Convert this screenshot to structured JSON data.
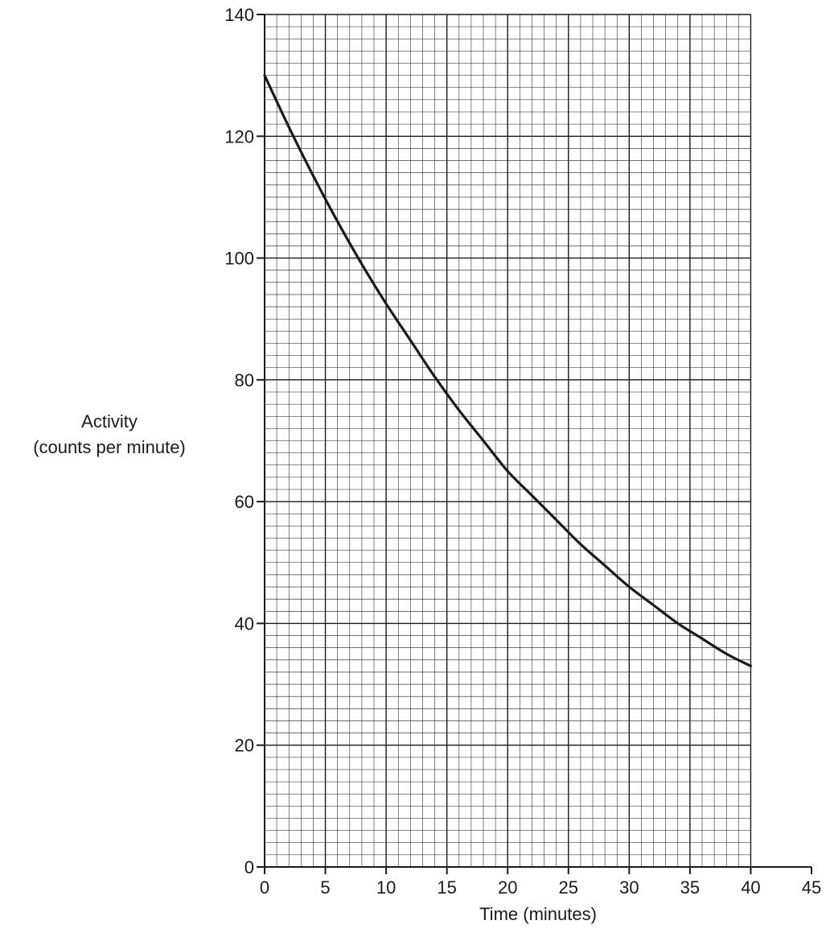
{
  "chart_data": {
    "type": "line",
    "title": "",
    "xlabel": "Time (minutes)",
    "ylabel_lines": [
      "Activity",
      "(counts per minute)"
    ],
    "xlim": [
      0,
      45
    ],
    "ylim": [
      0,
      140
    ],
    "x_ticks": [
      0,
      5,
      10,
      15,
      20,
      25,
      30,
      35,
      40,
      45
    ],
    "y_ticks": [
      0,
      20,
      40,
      60,
      80,
      100,
      120,
      140
    ],
    "x_tick_labels": [
      "0",
      "5",
      "10",
      "15",
      "20",
      "25",
      "30",
      "35",
      "40",
      "45"
    ],
    "y_tick_labels": [
      "0",
      "20",
      "40",
      "60",
      "80",
      "100",
      "120",
      "140"
    ],
    "grid": true,
    "minor_grid_step_x": 1,
    "minor_grid_step_y": 2,
    "line_color": "#1a1a1a",
    "grid_color": "#1a1a1a",
    "series": [
      {
        "x": [
          0,
          2,
          4,
          6,
          8,
          10,
          12,
          14,
          16,
          18,
          20,
          22,
          24,
          26,
          28,
          30,
          32,
          34,
          36,
          38,
          40
        ],
        "y": [
          130,
          121.5,
          113.5,
          106,
          99,
          92.5,
          86.5,
          80.5,
          75,
          70,
          65,
          61,
          57,
          53,
          49.5,
          46,
          43,
          40,
          37.5,
          35,
          33
        ]
      }
    ]
  }
}
